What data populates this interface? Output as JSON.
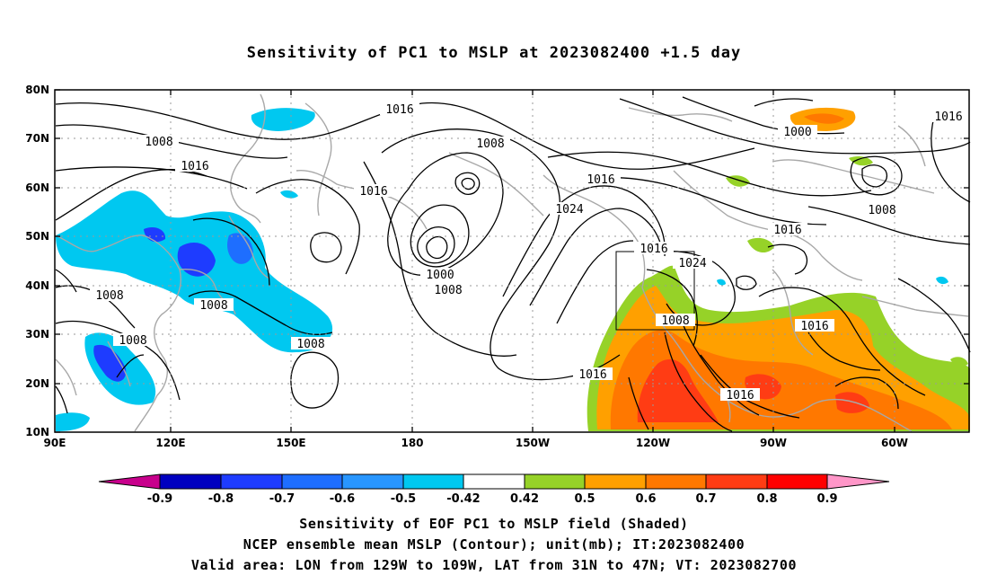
{
  "title": "Sensitivity of PC1 to MSLP at 2023082400 +1.5 day",
  "lat_labels": [
    "80N",
    "70N",
    "60N",
    "50N",
    "40N",
    "30N",
    "20N",
    "10N"
  ],
  "lon_labels": [
    "90E",
    "120E",
    "150E",
    "180",
    "150W",
    "120W",
    "90W",
    "60W"
  ],
  "colorbar": {
    "labels": [
      "-0.9",
      "-0.8",
      "-0.7",
      "-0.6",
      "-0.5",
      "-0.42",
      "0.42",
      "0.5",
      "0.6",
      "0.7",
      "0.8",
      "0.9"
    ],
    "colors": [
      "#c8008c",
      "#0000c0",
      "#1e3cff",
      "#1e6eff",
      "#2896ff",
      "#00c8f0",
      "#ffffff",
      "#96d228",
      "#ffa000",
      "#ff7800",
      "#ff3c14",
      "#ff0000",
      "#ff96c8"
    ]
  },
  "contour_labels": [
    "1016",
    "1016",
    "1016",
    "1016",
    "1016",
    "1016",
    "1016",
    "1016",
    "1016",
    "1016",
    "1008",
    "1008",
    "1008",
    "1008",
    "1008",
    "1008",
    "1008",
    "1008",
    "1008",
    "1024",
    "1024",
    "1000",
    "1000"
  ],
  "shading": {
    "negative_color": "#00c8f0",
    "positive_color": "#ffa000",
    "dark_negative_color": "#1e3cff",
    "dark_positive_color": "#ff3c14",
    "green_color": "#96d228"
  },
  "captions": [
    "Sensitivity of EOF PC1 to MSLP field (Shaded)",
    "NCEP ensemble mean MSLP (Contour); unit(mb); IT:2023082400",
    "Valid area: LON from 129W to 109W, LAT from 31N to 47N; VT: 2023082700"
  ]
}
